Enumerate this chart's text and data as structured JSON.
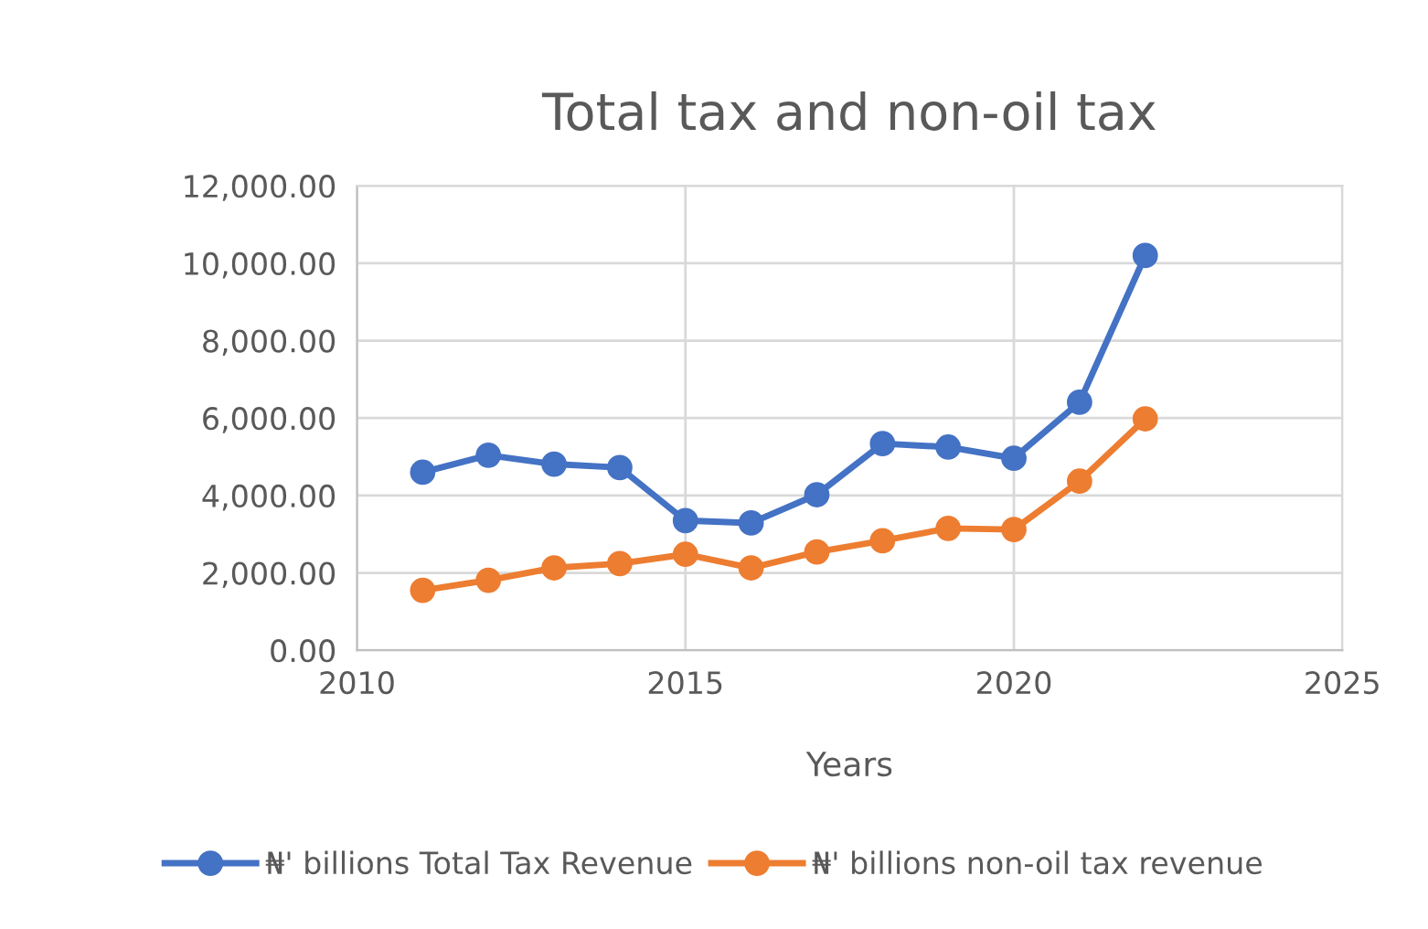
{
  "chart_data": {
    "type": "line",
    "title": "Total tax and non-oil tax",
    "xlabel": "Years",
    "x": [
      2011,
      2012,
      2013,
      2014,
      2015,
      2016,
      2017,
      2018,
      2019,
      2020,
      2021,
      2022
    ],
    "series": [
      {
        "name": "₦' billions Total Tax Revenue",
        "color": "#4472c4",
        "values": [
          4600,
          5040,
          4810,
          4720,
          3350,
          3290,
          4020,
          5340,
          5250,
          4960,
          6410,
          10200
        ]
      },
      {
        "name": "₦' billions non-oil tax revenue",
        "color": "#ed7d31",
        "values": [
          1550,
          1810,
          2130,
          2240,
          2480,
          2130,
          2540,
          2830,
          3150,
          3120,
          4370,
          5980
        ]
      }
    ],
    "xlim": [
      2010,
      2025
    ],
    "xticks": [
      2010,
      2015,
      2020,
      2025
    ],
    "ylim": [
      0,
      12000
    ],
    "yticks": [
      {
        "value": 0,
        "label": "0.00"
      },
      {
        "value": 2000,
        "label": "2,000.00"
      },
      {
        "value": 4000,
        "label": "4,000.00"
      },
      {
        "value": 6000,
        "label": "6,000.00"
      },
      {
        "value": 8000,
        "label": "8,000.00"
      },
      {
        "value": 10000,
        "label": "10,000.00"
      },
      {
        "value": 12000,
        "label": "12,000.00"
      }
    ],
    "grid": true,
    "legend": "bottom",
    "marker": "circle",
    "line_style": "solid"
  }
}
